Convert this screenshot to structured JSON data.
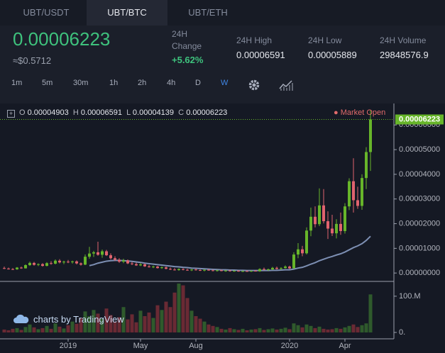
{
  "tabs": [
    "UBT/USDT",
    "UBT/BTC",
    "UBT/ETH"
  ],
  "active_tab": 1,
  "ticker": {
    "price": "0.00006223",
    "usd": "≈$0.5712",
    "change_label": "24H Change",
    "change": "+5.62%",
    "high_label": "24H High",
    "high": "0.00006591",
    "low_label": "24H Low",
    "low": "0.00005889",
    "volume_label": "24H Volume",
    "volume": "29848576.9"
  },
  "intervals": [
    "1m",
    "5m",
    "30m",
    "1h",
    "2h",
    "4h",
    "D",
    "W"
  ],
  "active_interval": 7,
  "legend": {
    "o_label": "O",
    "o": "0.00004903",
    "h_label": "H",
    "h": "0.00006591",
    "l_label": "L",
    "l": "0.00004139",
    "c_label": "C",
    "c": "0.00006223"
  },
  "market_status": "Market Open",
  "last_price_label": "0.00006223",
  "branding": "charts by TradingView",
  "chart": {
    "type": "candlestick",
    "up_color": "#67b52a",
    "down_color": "#e0636e",
    "ma_color": "#7d8fb3",
    "xlim": [
      -1,
      91.5
    ],
    "xticks": [
      {
        "value": 15,
        "label": "2019"
      },
      {
        "value": 32,
        "label": "May"
      },
      {
        "value": 45,
        "label": "Aug"
      },
      {
        "value": 67,
        "label": "2020"
      },
      {
        "value": 80,
        "label": "Apr"
      }
    ],
    "ylim": [
      -3.4e-06,
      6.87e-05
    ],
    "yticks": [
      {
        "value": 6e-05,
        "label": "0.00006000"
      },
      {
        "value": 5e-05,
        "label": "0.00005000"
      },
      {
        "value": 4e-05,
        "label": "0.00004000"
      },
      {
        "value": 3e-05,
        "label": "0.00003000"
      },
      {
        "value": 2e-05,
        "label": "0.00002000"
      },
      {
        "value": 1e-05,
        "label": "0.00001000"
      },
      {
        "value": 0,
        "label": "0.00000000"
      }
    ],
    "vlim": [
      -17600000,
      135000000
    ],
    "vticks": [
      {
        "value": 100000000,
        "label": "100.M"
      },
      {
        "value": 0,
        "label": "0."
      }
    ],
    "candles": [
      [
        2e-06,
        2.6e-06,
        1.6e-06,
        1.8e-06
      ],
      [
        1.8e-06,
        2.2e-06,
        1.4e-06,
        1.6e-06
      ],
      [
        1.6e-06,
        2e-06,
        1.2e-06,
        1.5e-06
      ],
      [
        1.5e-06,
        2.4e-06,
        1.3e-06,
        2.2e-06
      ],
      [
        2.2e-06,
        2.6e-06,
        1.7e-06,
        1.9e-06
      ],
      [
        1.9e-06,
        3.5e-06,
        1.8e-06,
        3.2e-06
      ],
      [
        3.2e-06,
        4.6e-06,
        2.9e-06,
        4.1e-06
      ],
      [
        4.1e-06,
        4.5e-06,
        3e-06,
        3.3e-06
      ],
      [
        3.3e-06,
        3.9e-06,
        2.8e-06,
        3.6e-06
      ],
      [
        3.6e-06,
        4e-06,
        2.6e-06,
        2.9e-06
      ],
      [
        2.9e-06,
        4.4e-06,
        2.7e-06,
        4e-06
      ],
      [
        4e-06,
        4.8e-06,
        3.4e-06,
        3.8e-06
      ],
      [
        3.8e-06,
        5.5e-06,
        3.5e-06,
        5e-06
      ],
      [
        5e-06,
        5.6e-06,
        3.9e-06,
        4.3e-06
      ],
      [
        4.3e-06,
        5e-06,
        3.6e-06,
        4.6e-06
      ],
      [
        4.6e-06,
        5.3e-06,
        4e-06,
        4.4e-06
      ],
      [
        4.4e-06,
        5e-06,
        3.8e-06,
        4.7e-06
      ],
      [
        4.7e-06,
        5.1e-06,
        3.5e-06,
        3.9e-06
      ],
      [
        3.9e-06,
        4.3e-06,
        3e-06,
        3.4e-06
      ],
      [
        3.4e-06,
        7.5e-06,
        3.2e-06,
        6.6e-06
      ],
      [
        6.6e-06,
        1.06e-05,
        5.8e-06,
        7.9e-06
      ],
      [
        7.9e-06,
        9e-06,
        6.5e-06,
        8.4e-06
      ],
      [
        8.4e-06,
        1.27e-05,
        7e-06,
        7.4e-06
      ],
      [
        7.4e-06,
        9.5e-06,
        6.2e-06,
        8.8e-06
      ],
      [
        8.8e-06,
        9.4e-06,
        6.9e-06,
        7.2e-06
      ],
      [
        7.2e-06,
        8e-06,
        5.5e-06,
        6e-06
      ],
      [
        6e-06,
        6.8e-06,
        4.9e-06,
        5.4e-06
      ],
      [
        5.4e-06,
        6e-06,
        4.1e-06,
        4.6e-06
      ],
      [
        4.6e-06,
        5.8e-06,
        4e-06,
        5.1e-06
      ],
      [
        5.1e-06,
        5.5e-06,
        3.6e-06,
        3.9e-06
      ],
      [
        3.9e-06,
        4.5e-06,
        3.2e-06,
        3.6e-06
      ],
      [
        3.6e-06,
        4.2e-06,
        2.9e-06,
        3.1e-06
      ],
      [
        3.1e-06,
        4e-06,
        2.8e-06,
        3.5e-06
      ],
      [
        3.5e-06,
        3.8e-06,
        2.5e-06,
        2.7e-06
      ],
      [
        2.7e-06,
        3.3e-06,
        2.2e-06,
        2.4e-06
      ],
      [
        2.4e-06,
        3e-06,
        2e-06,
        2.6e-06
      ],
      [
        2.6e-06,
        2.9e-06,
        1.8e-06,
        2e-06
      ],
      [
        2e-06,
        2.7e-06,
        1.7e-06,
        2.3e-06
      ],
      [
        2.3e-06,
        2.6e-06,
        1.5e-06,
        1.7e-06
      ],
      [
        1.7e-06,
        2.2e-06,
        1.2e-06,
        1.4e-06
      ],
      [
        1.4e-06,
        2e-06,
        1e-06,
        1.2e-06
      ],
      [
        1.2e-06,
        1.9e-06,
        9e-07,
        1.6e-06
      ],
      [
        1.6e-06,
        1.9e-06,
        1.1e-06,
        1.3e-06
      ],
      [
        1.3e-06,
        1.7e-06,
        9e-07,
        1.1e-06
      ],
      [
        1.1e-06,
        1.6e-06,
        8e-07,
        1.4e-06
      ],
      [
        1.4e-06,
        1.8e-06,
        1e-06,
        1.2e-06
      ],
      [
        1.2e-06,
        1.5e-06,
        8e-07,
        1e-06
      ],
      [
        1e-06,
        1.5e-06,
        7e-07,
        1.3e-06
      ],
      [
        1.3e-06,
        1.6e-06,
        9e-07,
        1.1e-06
      ],
      [
        1.1e-06,
        1.4e-06,
        7e-07,
        9e-07
      ],
      [
        9e-07,
        1.3e-06,
        6e-07,
        1.1e-06
      ],
      [
        1.1e-06,
        1.4e-06,
        7e-07,
        8e-07
      ],
      [
        8e-07,
        1.2e-06,
        5e-07,
        1e-06
      ],
      [
        1e-06,
        1.3e-06,
        6e-07,
        8e-07
      ],
      [
        8e-07,
        1.1e-06,
        5e-07,
        9e-07
      ],
      [
        9e-07,
        1.2e-06,
        5e-07,
        7e-07
      ],
      [
        7e-07,
        1e-06,
        4e-07,
        8e-07
      ],
      [
        8e-07,
        1.1e-06,
        5e-07,
        6e-07
      ],
      [
        6e-07,
        1e-06,
        4e-07,
        9e-07
      ],
      [
        9e-07,
        1.2e-06,
        6e-07,
        7e-07
      ],
      [
        7e-07,
        1.9e-06,
        5e-07,
        1.6e-06
      ],
      [
        1.6e-06,
        2.2e-06,
        1.1e-06,
        1.3e-06
      ],
      [
        1.3e-06,
        1.8e-06,
        9e-07,
        1.5e-06
      ],
      [
        1.5e-06,
        2.5e-06,
        1.2e-06,
        2.1e-06
      ],
      [
        2.1e-06,
        2.6e-06,
        1.4e-06,
        1.7e-06
      ],
      [
        1.7e-06,
        2.3e-06,
        1.3e-06,
        2e-06
      ],
      [
        2e-06,
        3.1e-06,
        1.8e-06,
        2.6e-06
      ],
      [
        2.6e-06,
        3e-06,
        1.6e-06,
        1.9e-06
      ],
      [
        1.9e-06,
        8.4e-06,
        1.8e-06,
        7.5e-06
      ],
      [
        7.5e-06,
        1.21e-05,
        6e-06,
        9.6e-06
      ],
      [
        9.6e-06,
        1.1e-05,
        6.8e-06,
        8e-06
      ],
      [
        8e-06,
        1.85e-05,
        7.5e-06,
        1.72e-05
      ],
      [
        1.72e-05,
        2.65e-05,
        1.49e-05,
        2.28e-05
      ],
      [
        2.28e-05,
        2.7e-05,
        1.85e-05,
        1.98e-05
      ],
      [
        1.98e-05,
        3.43e-05,
        1.9e-05,
        2.74e-05
      ],
      [
        2.74e-05,
        3.4e-05,
        2.01e-05,
        2.1e-05
      ],
      [
        2.1e-05,
        2.5e-05,
        1.38e-05,
        1.8e-05
      ],
      [
        1.8e-05,
        2.36e-05,
        1.5e-05,
        1.61e-05
      ],
      [
        1.61e-05,
        2.18e-05,
        1.4e-05,
        1.99e-05
      ],
      [
        1.99e-05,
        2.45e-05,
        1.55e-05,
        1.7e-05
      ],
      [
        1.7e-05,
        2.83e-05,
        1.6e-05,
        2.7e-05
      ],
      [
        2.7e-05,
        3.84e-05,
        2.55e-05,
        3.72e-05
      ],
      [
        3.72e-05,
        4.65e-05,
        2.45e-05,
        2.95e-05
      ],
      [
        2.95e-05,
        3.5e-05,
        2.6e-05,
        2.72e-05
      ],
      [
        2.72e-05,
        4e-05,
        2.56e-05,
        3.85e-05
      ],
      [
        3.85e-05,
        5.1e-05,
        3.4e-05,
        4.903e-05
      ],
      [
        4.903e-05,
        6.591e-05,
        4.139e-05,
        6.223e-05
      ]
    ],
    "ma": [
      null,
      null,
      null,
      null,
      null,
      null,
      null,
      null,
      null,
      null,
      null,
      null,
      null,
      null,
      null,
      null,
      null,
      null,
      null,
      null,
      3e-06,
      3.4e-06,
      4e-06,
      4.4e-06,
      4.8e-06,
      5e-06,
      5.1e-06,
      5.1e-06,
      5e-06,
      4.9e-06,
      4.7e-06,
      4.5e-06,
      4.3e-06,
      4e-06,
      3.8e-06,
      3.6e-06,
      3.4e-06,
      3.2e-06,
      3e-06,
      2.8e-06,
      2.6e-06,
      2.5e-06,
      2.3e-06,
      2.2e-06,
      2e-06,
      1.9e-06,
      1.8e-06,
      1.7e-06,
      1.6e-06,
      1.5e-06,
      1.4e-06,
      1.3e-06,
      1.3e-06,
      1.2e-06,
      1.2e-06,
      1.1e-06,
      1.1e-06,
      1e-06,
      1e-06,
      1e-06,
      1e-06,
      1e-06,
      1e-06,
      1.1e-06,
      1.1e-06,
      1.2e-06,
      1.3e-06,
      1.3e-06,
      1.6e-06,
      2e-06,
      2.3e-06,
      2.9e-06,
      3.6e-06,
      4.2e-06,
      5e-06,
      5.6e-06,
      6.2e-06,
      6.7e-06,
      7.3e-06,
      7.8e-06,
      8.5e-06,
      9.4e-06,
      1.03e-05,
      1.1e-05,
      1.19e-05,
      1.32e-05,
      1.49e-05
    ],
    "volume": [
      8000000.0,
      6000000.0,
      10000000.0,
      12000000.0,
      7000000.0,
      15000000.0,
      22000000.0,
      14000000.0,
      9000000.0,
      12000000.0,
      18000000.0,
      10000000.0,
      25000000.0,
      16000000.0,
      11000000.0,
      20000000.0,
      30000000.0,
      24000000.0,
      40000000.0,
      58000000.0,
      45000000.0,
      62000000.0,
      52000000.0,
      38000000.0,
      66000000.0,
      48000000.0,
      30000000.0,
      42000000.0,
      70000000.0,
      36000000.0,
      50000000.0,
      28000000.0,
      60000000.0,
      45000000.0,
      55000000.0,
      40000000.0,
      75000000.0,
      62000000.0,
      85000000.0,
      70000000.0,
      110000000.0,
      135000000.0,
      130000000.0,
      95000000.0,
      60000000.0,
      45000000.0,
      38000000.0,
      30000000.0,
      22000000.0,
      18000000.0,
      15000000.0,
      10000000.0,
      8000000.0,
      12000000.0,
      9000000.0,
      7000000.0,
      10000000.0,
      6000000.0,
      8000000.0,
      9000000.0,
      12000000.0,
      7000000.0,
      9000000.0,
      11000000.0,
      8000000.0,
      10000000.0,
      13000000.0,
      9000000.0,
      25000000.0,
      20000000.0,
      14000000.0,
      22000000.0,
      18000000.0,
      12000000.0,
      16000000.0,
      10000000.0,
      8000000.0,
      9000000.0,
      12000000.0,
      10000000.0,
      14000000.0,
      18000000.0,
      22000000.0,
      15000000.0,
      20000000.0,
      25000000.0,
      105000000.0
    ]
  }
}
